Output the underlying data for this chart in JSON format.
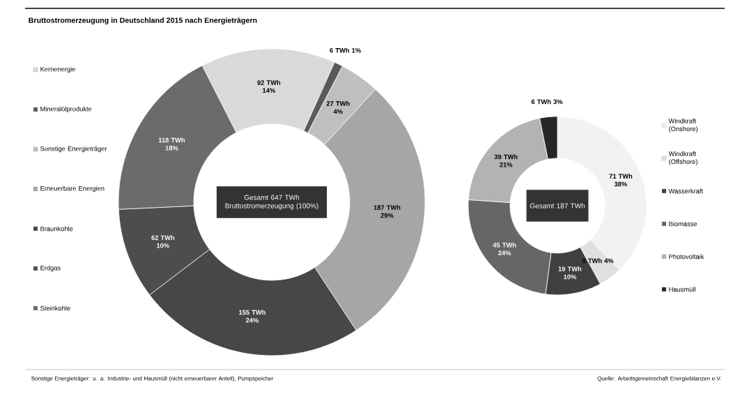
{
  "chart_data": [
    {
      "type": "donut",
      "title": "Bruttostromerzeugung in Deutschland 2015 nach Energieträgern",
      "categories": [
        "Kernenergie",
        "Mineralölprodukte",
        "Sonstige Energieträger",
        "Erneuerbare Energien",
        "Braunkohle",
        "Erdgas",
        "Steinkohle"
      ],
      "values": [
        92,
        6,
        27,
        187,
        155,
        62,
        118
      ],
      "value_labels": [
        "92 TWh 14%",
        "6 TWh 1%",
        "27 TWh 4%",
        "187 TWh 29%",
        "155 TWh 24%",
        "62 TWh 10%",
        "118 TWh 18%"
      ],
      "colors": [
        "#d9d9d9",
        "#5a5a5a",
        "#bfbfbf",
        "#a6a6a6",
        "#474747",
        "#4d4d4d",
        "#6b6b6b"
      ],
      "legend": "left",
      "annotations": [
        "Gesamt 647 TWh Bruttostromerzeugung (100%)",
        "Sonstige Energieträger: u. a. Industrie- und Hausmüll (nicht erneuerbarer Anteil), Pumpspeicher",
        "Quelle: Arbeitsgemeinschaft Energiebilanzen e.V."
      ]
    },
    {
      "type": "donut",
      "categories": [
        "Windkraft (Onshore)",
        "Windkraft (Offshore)",
        "Wasserkraft",
        "Biomasse",
        "Photovoltaik",
        "Hausmüll"
      ],
      "values": [
        71,
        8,
        19,
        45,
        39,
        6
      ],
      "value_labels": [
        "71 TWh 38%",
        "8 TWh 4%",
        "19 TWh 10%",
        "45 TWh 24%",
        "39 TWh 21%",
        "6 TWh 3%"
      ],
      "colors": [
        "#f2f2f2",
        "#e0e0e0",
        "#3f3f3f",
        "#666666",
        "#b3b3b3",
        "#262626"
      ],
      "legend": "right",
      "annotations": [
        "Gesamt 187 TWh"
      ]
    }
  ]
}
